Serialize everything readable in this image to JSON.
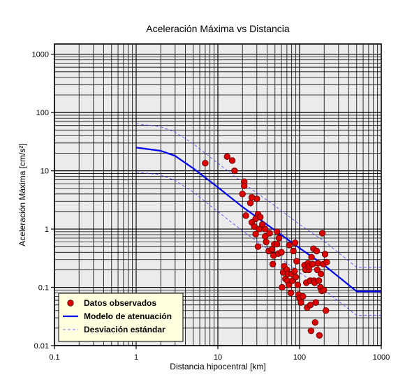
{
  "chart_data": {
    "type": "scatter",
    "title": "Aceleración Máxima vs Distancia",
    "xlabel": "Distancia hipocentral [km]",
    "ylabel": "Aceleración Máxima [cm/s²]",
    "xscale": "log",
    "yscale": "log",
    "xlim": [
      0.1,
      1000
    ],
    "ylim": [
      0.01,
      1500
    ],
    "xticks": [
      "0.1",
      "1",
      "10",
      "100",
      "1000"
    ],
    "yticks": [
      "0.01",
      "0.1",
      "1",
      "10",
      "100",
      "1000"
    ],
    "grid": true,
    "legend_position": "bottom-left",
    "colors": {
      "plot_background": "#ebebeb",
      "grid": "#000000",
      "points_fill": "#dd0000",
      "points_stroke": "#550000",
      "model": "#0000ee",
      "deviation": "#4444ff",
      "legend_background": "#ffffe0"
    },
    "series": [
      {
        "name": "Datos observados",
        "kind": "points",
        "points": [
          [
            7,
            13.5
          ],
          [
            13,
            17.5
          ],
          [
            15,
            15
          ],
          [
            16,
            10
          ],
          [
            20,
            4
          ],
          [
            21,
            6.5
          ],
          [
            21,
            5.5
          ],
          [
            22,
            1.7
          ],
          [
            25,
            2.8
          ],
          [
            26,
            3.5
          ],
          [
            26,
            1.3
          ],
          [
            28,
            1.1
          ],
          [
            29,
            1.5
          ],
          [
            30,
            3.3
          ],
          [
            29,
            0.82
          ],
          [
            31,
            1.8
          ],
          [
            31,
            0.5
          ],
          [
            32,
            1.0
          ],
          [
            33,
            1.6
          ],
          [
            35,
            1.2
          ],
          [
            38,
            1.0
          ],
          [
            38,
            0.75
          ],
          [
            39,
            0.6
          ],
          [
            42,
            0.42
          ],
          [
            43,
            0.85
          ],
          [
            46,
            0.45
          ],
          [
            47,
            0.25
          ],
          [
            48,
            0.35
          ],
          [
            49,
            0.55
          ],
          [
            53,
            0.9
          ],
          [
            53,
            0.55
          ],
          [
            55,
            0.38
          ],
          [
            56,
            0.7
          ],
          [
            60,
            0.4
          ],
          [
            61,
            0.1
          ],
          [
            63,
            0.18
          ],
          [
            65,
            0.23
          ],
          [
            67,
            0.14
          ],
          [
            70,
            0.2
          ],
          [
            71,
            0.13
          ],
          [
            72,
            0.17
          ],
          [
            74,
            0.11
          ],
          [
            75,
            0.53
          ],
          [
            78,
            0.08
          ],
          [
            80,
            0.17
          ],
          [
            82,
            0.13
          ],
          [
            84,
            0.42
          ],
          [
            87,
            0.19
          ],
          [
            88,
            0.58
          ],
          [
            90,
            0.15
          ],
          [
            92,
            0.28
          ],
          [
            95,
            0.11
          ],
          [
            97,
            0.075
          ],
          [
            100,
            0.065
          ],
          [
            104,
            0.055
          ],
          [
            110,
            0.07
          ],
          [
            115,
            0.24
          ],
          [
            118,
            0.2
          ],
          [
            121,
            0.12
          ],
          [
            124,
            0.045
          ],
          [
            127,
            0.26
          ],
          [
            130,
            0.2
          ],
          [
            132,
            0.23
          ],
          [
            135,
            0.13
          ],
          [
            136,
            0.05
          ],
          [
            138,
            0.018
          ],
          [
            140,
            0.33
          ],
          [
            145,
            0.25
          ],
          [
            148,
            0.46
          ],
          [
            150,
            0.13
          ],
          [
            153,
            0.12
          ],
          [
            155,
            0.025
          ],
          [
            158,
            0.055
          ],
          [
            162,
            0.42
          ],
          [
            165,
            0.2
          ],
          [
            168,
            0.26
          ],
          [
            172,
            0.13
          ],
          [
            175,
            0.015
          ],
          [
            180,
            0.1
          ],
          [
            183,
            0.17
          ],
          [
            187,
            0.087
          ],
          [
            190,
            0.85
          ],
          [
            195,
            0.25
          ],
          [
            198,
            0.09
          ],
          [
            205,
            0.37
          ],
          [
            210,
            0.04
          ],
          [
            215,
            0.27
          ]
        ]
      },
      {
        "name": "Modelo de atenuación",
        "kind": "line",
        "points": [
          [
            1,
            25
          ],
          [
            2,
            22
          ],
          [
            3,
            18
          ],
          [
            5,
            11
          ],
          [
            10,
            5.2
          ],
          [
            20,
            2.4
          ],
          [
            50,
            0.95
          ],
          [
            100,
            0.47
          ],
          [
            200,
            0.24
          ],
          [
            500,
            0.085
          ],
          [
            1000,
            0.085
          ]
        ]
      },
      {
        "name": "Desviación estándar",
        "kind": "dashed",
        "points": [
          [
            1,
            64
          ],
          [
            2,
            57
          ],
          [
            3,
            46
          ],
          [
            5,
            29
          ],
          [
            10,
            13.5
          ],
          [
            20,
            6.3
          ],
          [
            50,
            2.5
          ],
          [
            100,
            1.2
          ],
          [
            200,
            0.62
          ],
          [
            500,
            0.22
          ],
          [
            1000,
            0.22
          ]
        ]
      },
      {
        "name": "",
        "kind": "dashed",
        "points": [
          [
            1,
            9.6
          ],
          [
            2,
            8.5
          ],
          [
            3,
            6.8
          ],
          [
            5,
            4.3
          ],
          [
            10,
            2.0
          ],
          [
            20,
            0.93
          ],
          [
            50,
            0.37
          ],
          [
            100,
            0.18
          ],
          [
            200,
            0.09
          ],
          [
            500,
            0.033
          ],
          [
            1000,
            0.033
          ]
        ]
      }
    ]
  }
}
